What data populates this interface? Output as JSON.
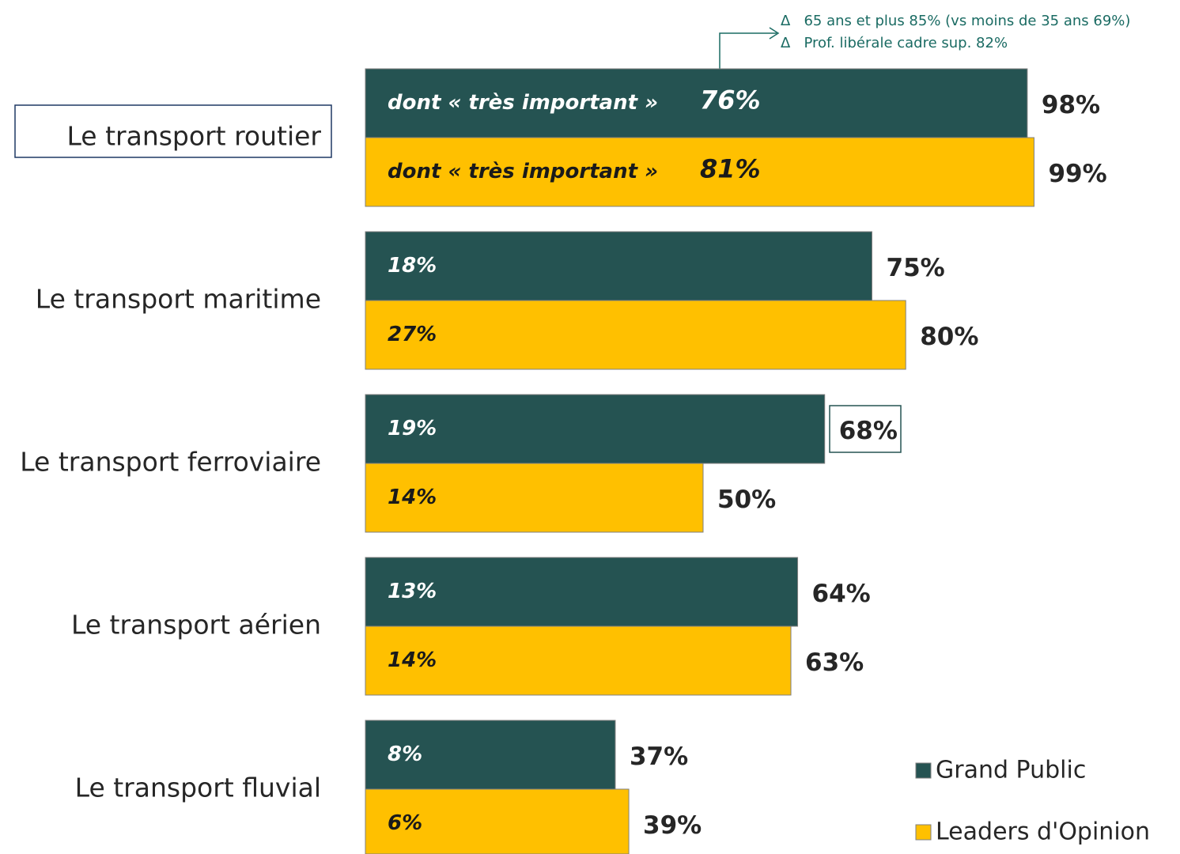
{
  "chart_data": {
    "type": "bar",
    "orientation": "horizontal",
    "categories": [
      "Le transport routier",
      "Le transport maritime",
      "Le transport ferroviaire",
      "Le transport aérien",
      "Le transport fluvial"
    ],
    "sub_label": "dont « très important »",
    "series": [
      {
        "name": "Grand Public",
        "color": "#255352",
        "text_color": "#ffffff",
        "values": [
          98,
          75,
          68,
          64,
          37
        ],
        "value_labels": [
          "98%",
          "75%",
          "68%",
          "64%",
          "37%"
        ],
        "sub_values": [
          76,
          18,
          19,
          13,
          8
        ],
        "sub_value_labels": [
          "76%",
          "18%",
          "19%",
          "13%",
          "8%"
        ]
      },
      {
        "name": "Leaders d'Opinion",
        "color": "#ffc000",
        "text_color": "#1a1a1a",
        "values": [
          99,
          80,
          50,
          63,
          39
        ],
        "value_labels": [
          "99%",
          "80%",
          "50%",
          "63%",
          "39%"
        ],
        "sub_values": [
          81,
          27,
          14,
          14,
          6
        ],
        "sub_value_labels": [
          "81%",
          "27%",
          "14%",
          "14%",
          "6%"
        ]
      }
    ],
    "annotations": [
      "Δ   65 ans et plus 85% (vs moins de 35 ans 69%)",
      "Δ   Prof. libérale cadre sup. 82%"
    ]
  }
}
